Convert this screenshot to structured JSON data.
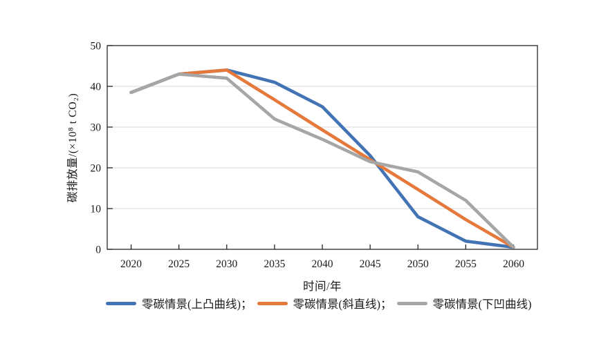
{
  "chart_data": {
    "type": "line",
    "title": "",
    "xlabel": "时间/年",
    "ylabel": "碳排放量/(×10⁸ t CO₂)",
    "x": [
      "2020",
      "2025",
      "2030",
      "2035",
      "2040",
      "2045",
      "2050",
      "2055",
      "2060"
    ],
    "y_ticks": [
      0,
      10,
      20,
      30,
      40,
      50
    ],
    "ylim": [
      0,
      50
    ],
    "grid": "horizontal-only",
    "legend_position": "bottom",
    "colors": {
      "grid": "#d9d9d9",
      "axis": "#262626",
      "text": "#1a1a1a"
    },
    "series": [
      {
        "name": "零碳情景(上凸曲线)；",
        "color": "#4273B4",
        "values": [
          38.5,
          43,
          44,
          41,
          35,
          23,
          8,
          2,
          0.5
        ]
      },
      {
        "name": "零碳情景(斜直线)；",
        "color": "#E5793B",
        "values": [
          38.5,
          43,
          44,
          36.7,
          29.3,
          22,
          14.7,
          7.3,
          0.5
        ]
      },
      {
        "name": "零碳情景(下凹曲线)",
        "color": "#A6A6A6",
        "values": [
          38.5,
          43,
          42,
          32,
          27,
          21.5,
          19,
          12,
          0.5
        ]
      }
    ]
  }
}
